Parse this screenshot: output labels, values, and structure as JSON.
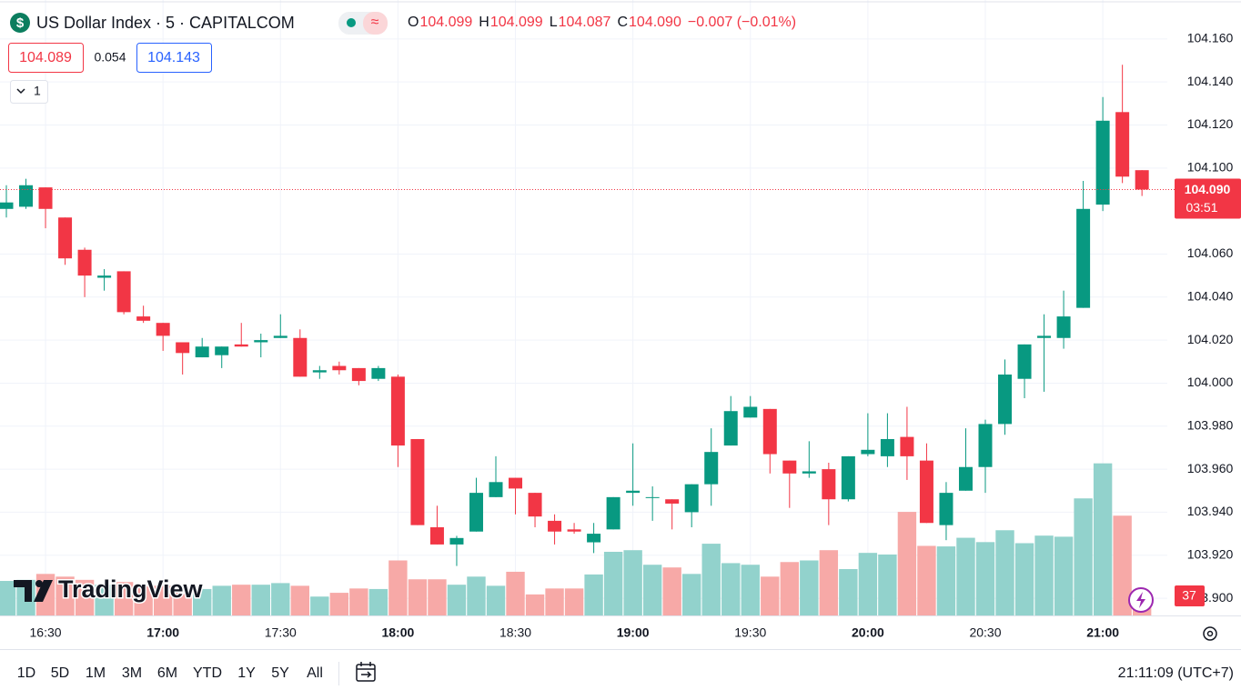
{
  "header": {
    "symbol": "US Dollar Index · 5 · CAPITALCOM",
    "ohlc": [
      {
        "key": "O",
        "value": "104.099"
      },
      {
        "key": "H",
        "value": "104.099"
      },
      {
        "key": "L",
        "value": "104.087"
      },
      {
        "key": "C",
        "value": "104.090"
      }
    ],
    "change": "−0.007 (−0.01%)",
    "bid": "104.089",
    "spread": "0.054",
    "ask": "104.143",
    "interval": "1"
  },
  "chart_data": {
    "type": "candlestick",
    "categories": [
      null,
      null,
      "16:30",
      null,
      null,
      null,
      null,
      null,
      "17:00",
      null,
      null,
      null,
      null,
      null,
      "17:30",
      null,
      null,
      null,
      null,
      null,
      "18:00",
      null,
      null,
      null,
      null,
      null,
      "18:30",
      null,
      null,
      null,
      null,
      null,
      "19:00",
      null,
      null,
      null,
      null,
      null,
      "19:30",
      null,
      null,
      null,
      null,
      null,
      "20:00",
      null,
      null,
      null,
      null,
      null,
      "20:30",
      null,
      null,
      null,
      null,
      null,
      "21:00",
      null,
      null
    ],
    "open": [
      104.081,
      104.082,
      104.091,
      104.077,
      104.062,
      104.049,
      104.052,
      104.031,
      104.028,
      104.019,
      104.012,
      104.013,
      104.018,
      104.019,
      104.021,
      104.021,
      104.005,
      104.008,
      104.007,
      104.002,
      104.003,
      103.974,
      103.933,
      103.925,
      103.931,
      103.947,
      103.956,
      103.949,
      103.936,
      103.932,
      103.926,
      103.932,
      103.949,
      103.947,
      103.946,
      103.94,
      103.953,
      103.971,
      103.984,
      103.988,
      103.964,
      103.958,
      103.96,
      103.946,
      103.967,
      103.966,
      103.975,
      103.964,
      103.934,
      103.95,
      103.961,
      103.981,
      104.002,
      104.021,
      104.021,
      104.035,
      104.083,
      104.126,
      104.099
    ],
    "high": [
      104.092,
      104.095,
      104.091,
      104.077,
      104.063,
      104.053,
      104.052,
      104.036,
      104.028,
      104.019,
      104.021,
      104.017,
      104.028,
      104.023,
      104.032,
      104.025,
      104.008,
      104.01,
      104.007,
      104.008,
      104.004,
      103.974,
      103.943,
      103.929,
      103.956,
      103.966,
      103.956,
      103.949,
      103.939,
      103.935,
      103.935,
      103.947,
      103.972,
      103.952,
      103.946,
      103.953,
      103.979,
      103.994,
      103.994,
      103.988,
      103.964,
      103.973,
      103.963,
      103.966,
      103.986,
      103.986,
      103.989,
      103.972,
      103.954,
      103.979,
      103.983,
      104.011,
      104.018,
      104.032,
      104.043,
      104.094,
      104.133,
      104.148,
      104.099
    ],
    "low": [
      104.077,
      104.081,
      104.072,
      104.055,
      104.04,
      104.043,
      104.032,
      104.028,
      104.015,
      104.004,
      104.012,
      104.007,
      104.017,
      104.012,
      104.021,
      104.003,
      104.002,
      104.004,
      103.999,
      104.001,
      103.961,
      103.934,
      103.925,
      103.915,
      103.931,
      103.947,
      103.939,
      103.933,
      103.925,
      103.93,
      103.921,
      103.932,
      103.943,
      103.936,
      103.932,
      103.933,
      103.943,
      103.971,
      103.984,
      103.958,
      103.942,
      103.956,
      103.934,
      103.945,
      103.966,
      103.961,
      103.955,
      103.935,
      103.927,
      103.95,
      103.949,
      103.976,
      103.993,
      103.996,
      104.016,
      104.035,
      104.08,
      104.093,
      104.087
    ],
    "close": [
      104.084,
      104.092,
      104.081,
      104.058,
      104.05,
      104.05,
      104.033,
      104.029,
      104.022,
      104.014,
      104.017,
      104.017,
      104.017,
      104.02,
      104.022,
      104.003,
      104.006,
      104.006,
      104.001,
      104.007,
      103.971,
      103.934,
      103.925,
      103.928,
      103.949,
      103.954,
      103.951,
      103.938,
      103.931,
      103.931,
      103.93,
      103.947,
      103.95,
      103.947,
      103.944,
      103.953,
      103.968,
      103.987,
      103.989,
      103.967,
      103.958,
      103.959,
      103.946,
      103.966,
      103.969,
      103.974,
      103.966,
      103.935,
      103.949,
      103.961,
      103.981,
      104.004,
      104.018,
      104.022,
      104.031,
      104.081,
      104.122,
      104.096,
      104.09
    ],
    "volume": [
      64,
      66,
      77,
      72,
      66,
      57,
      62,
      54,
      55,
      52,
      49,
      55,
      57,
      57,
      60,
      55,
      35,
      42,
      50,
      49,
      102,
      67,
      67,
      57,
      72,
      55,
      81,
      39,
      50,
      50,
      76,
      118,
      121,
      94,
      89,
      77,
      133,
      97,
      94,
      72,
      99,
      102,
      121,
      86,
      116,
      113,
      192,
      129,
      128,
      144,
      136,
      158,
      134,
      148,
      146,
      217,
      282,
      185,
      37
    ],
    "up_color": "#089981",
    "down_color": "#f23645",
    "volume_up_color": "#92d2cc",
    "volume_down_color": "#f7a9a7",
    "ylim": [
      103.892,
      104.176
    ],
    "yticks": [
      {
        "value": 103.9,
        "label": "103.900"
      },
      {
        "value": 103.92,
        "label": "103.920"
      },
      {
        "value": 103.94,
        "label": "103.940"
      },
      {
        "value": 103.96,
        "label": "103.960"
      },
      {
        "value": 103.98,
        "label": "103.980"
      },
      {
        "value": 104,
        "label": "104.000"
      },
      {
        "value": 104.02,
        "label": "104.020"
      },
      {
        "value": 104.04,
        "label": "104.040"
      },
      {
        "value": 104.06,
        "label": "104.060"
      },
      {
        "value": 104.1,
        "label": "104.100"
      },
      {
        "value": 104.12,
        "label": "104.120"
      },
      {
        "value": 104.14,
        "label": "104.140"
      },
      {
        "value": 104.16,
        "label": "104.160"
      }
    ],
    "volume_ylim": [
      0,
      300
    ],
    "last_price": {
      "value": 104.09,
      "label": "104.090"
    },
    "countdown": "03:51",
    "grid": true,
    "logo": "TradingView"
  },
  "toolbar": {
    "ranges": [
      "1D",
      "5D",
      "1M",
      "3M",
      "6M",
      "YTD",
      "1Y",
      "5Y",
      "All"
    ],
    "clock": "21:11:09 (UTC+7)"
  }
}
